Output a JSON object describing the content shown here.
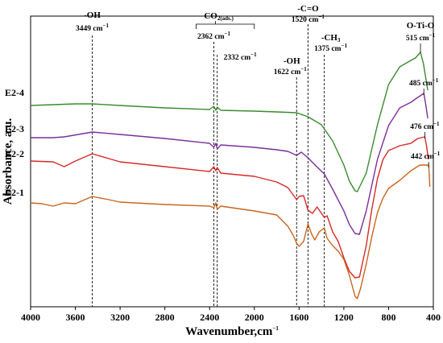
{
  "chart_data": {
    "type": "line",
    "xlabel": "Wavenumber,cm",
    "xlabel_sup": "−1",
    "ylabel": "Absorbance, a.u.",
    "xlim": [
      4000,
      400
    ],
    "x_reversed": true,
    "x_ticks": [
      "4000",
      "3600",
      "3200",
      "2800",
      "2400",
      "2000",
      "1600",
      "1200",
      "800",
      "400"
    ],
    "y_ticks_shown": false,
    "grid": false,
    "series": [
      {
        "name": "E2-4",
        "color": "#3a8a2e",
        "points": [
          [
            4000,
            131
          ],
          [
            3800,
            130
          ],
          [
            3600,
            129
          ],
          [
            3449,
            129
          ],
          [
            3200,
            131
          ],
          [
            2800,
            134
          ],
          [
            2400,
            136
          ],
          [
            2362,
            132
          ],
          [
            2345,
            137
          ],
          [
            2332,
            133
          ],
          [
            2300,
            137
          ],
          [
            2000,
            138
          ],
          [
            1800,
            139
          ],
          [
            1622,
            140
          ],
          [
            1520,
            145
          ],
          [
            1400,
            155
          ],
          [
            1300,
            175
          ],
          [
            1200,
            205
          ],
          [
            1150,
            225
          ],
          [
            1100,
            237
          ],
          [
            1080,
            238
          ],
          [
            1000,
            215
          ],
          [
            900,
            155
          ],
          [
            800,
            105
          ],
          [
            700,
            83
          ],
          [
            600,
            75
          ],
          [
            560,
            72
          ],
          [
            515,
            65
          ],
          [
            490,
            78
          ],
          [
            470,
            95
          ],
          [
            450,
            112
          ]
        ]
      },
      {
        "name": "E2-3",
        "color": "#7b2f9a",
        "points": [
          [
            4000,
            171
          ],
          [
            3800,
            171
          ],
          [
            3700,
            170
          ],
          [
            3449,
            164
          ],
          [
            3200,
            167
          ],
          [
            2800,
            172
          ],
          [
            2400,
            178
          ],
          [
            2362,
            183
          ],
          [
            2345,
            178
          ],
          [
            2332,
            185
          ],
          [
            2300,
            180
          ],
          [
            2000,
            183
          ],
          [
            1800,
            186
          ],
          [
            1700,
            188
          ],
          [
            1622,
            193
          ],
          [
            1580,
            189
          ],
          [
            1520,
            196
          ],
          [
            1450,
            206
          ],
          [
            1375,
            216
          ],
          [
            1300,
            235
          ],
          [
            1200,
            262
          ],
          [
            1150,
            279
          ],
          [
            1100,
            290
          ],
          [
            1060,
            291
          ],
          [
            1000,
            262
          ],
          [
            900,
            198
          ],
          [
            800,
            156
          ],
          [
            700,
            134
          ],
          [
            600,
            127
          ],
          [
            550,
            122
          ],
          [
            485,
            116
          ],
          [
            470,
            128
          ],
          [
            450,
            147
          ]
        ]
      },
      {
        "name": "E2-2",
        "color": "#d42a2a",
        "points": [
          [
            4000,
            200
          ],
          [
            3800,
            201
          ],
          [
            3700,
            207
          ],
          [
            3600,
            200
          ],
          [
            3449,
            191
          ],
          [
            3300,
            197
          ],
          [
            3200,
            201
          ],
          [
            2800,
            207
          ],
          [
            2400,
            213
          ],
          [
            2362,
            207
          ],
          [
            2345,
            212
          ],
          [
            2332,
            208
          ],
          [
            2300,
            215
          ],
          [
            2000,
            219
          ],
          [
            1800,
            226
          ],
          [
            1700,
            233
          ],
          [
            1622,
            248
          ],
          [
            1600,
            244
          ],
          [
            1560,
            243
          ],
          [
            1520,
            261
          ],
          [
            1480,
            265
          ],
          [
            1440,
            257
          ],
          [
            1400,
            265
          ],
          [
            1375,
            270
          ],
          [
            1350,
            268
          ],
          [
            1300,
            288
          ],
          [
            1250,
            300
          ],
          [
            1200,
            320
          ],
          [
            1150,
            337
          ],
          [
            1100,
            345
          ],
          [
            1060,
            344
          ],
          [
            1000,
            305
          ],
          [
            950,
            260
          ],
          [
            900,
            222
          ],
          [
            850,
            198
          ],
          [
            800,
            187
          ],
          [
            700,
            181
          ],
          [
            600,
            178
          ],
          [
            540,
            172
          ],
          [
            476,
            170
          ],
          [
            460,
            182
          ],
          [
            445,
            198
          ]
        ]
      },
      {
        "name": "E2-1",
        "color": "#c8651e",
        "points": [
          [
            4000,
            252
          ],
          [
            3900,
            253
          ],
          [
            3800,
            256
          ],
          [
            3700,
            252
          ],
          [
            3600,
            253
          ],
          [
            3449,
            244
          ],
          [
            3300,
            248
          ],
          [
            3200,
            251
          ],
          [
            2800,
            254
          ],
          [
            2400,
            256
          ],
          [
            2362,
            258
          ],
          [
            2345,
            252
          ],
          [
            2332,
            260
          ],
          [
            2300,
            256
          ],
          [
            2000,
            262
          ],
          [
            1800,
            267
          ],
          [
            1700,
            281
          ],
          [
            1650,
            293
          ],
          [
            1622,
            302
          ],
          [
            1600,
            306
          ],
          [
            1560,
            300
          ],
          [
            1520,
            278
          ],
          [
            1490,
            290
          ],
          [
            1460,
            298
          ],
          [
            1420,
            288
          ],
          [
            1375,
            283
          ],
          [
            1350,
            296
          ],
          [
            1300,
            305
          ],
          [
            1250,
            312
          ],
          [
            1200,
            322
          ],
          [
            1150,
            342
          ],
          [
            1100,
            368
          ],
          [
            1080,
            371
          ],
          [
            1050,
            358
          ],
          [
            1000,
            328
          ],
          [
            950,
            294
          ],
          [
            900,
            264
          ],
          [
            850,
            246
          ],
          [
            800,
            234
          ],
          [
            700,
            224
          ],
          [
            600,
            212
          ],
          [
            520,
            205
          ],
          [
            442,
            205
          ],
          [
            435,
            220
          ],
          [
            432,
            232
          ]
        ]
      }
    ],
    "band_markers": [
      {
        "x": 3449,
        "name": "-OH",
        "wn": "3449 cm",
        "sup": "−1"
      },
      {
        "x": 2362,
        "name": "",
        "wn": "2362 cm",
        "sup": "−1"
      },
      {
        "x": 2332,
        "name": "",
        "wn": "2332 cm",
        "sup": "−1"
      },
      {
        "x": 1622,
        "name": "-OH",
        "wn": "1622 cm",
        "sup": "−1"
      },
      {
        "x": 1520,
        "name": "-C=O",
        "wn": "1520 cm",
        "sup": "−1"
      },
      {
        "x": 1375,
        "name": "-CH",
        "name_sub": "3",
        "wn": "1375 cm",
        "sup": "−1"
      }
    ],
    "co2_label": {
      "main": "CO",
      "sub": "2(ads.)"
    },
    "peak_labels": [
      {
        "series": "E2-4",
        "name": "O-Ti-O",
        "wn": "515 cm",
        "sup": "−1"
      },
      {
        "series": "E2-3",
        "name": "",
        "wn": "485 cm",
        "sup": "−1"
      },
      {
        "series": "E2-2",
        "name": "",
        "wn": "476 cm",
        "sup": "−1"
      },
      {
        "series": "E2-1",
        "name": "",
        "wn": "442 cm",
        "sup": "−1"
      }
    ]
  }
}
